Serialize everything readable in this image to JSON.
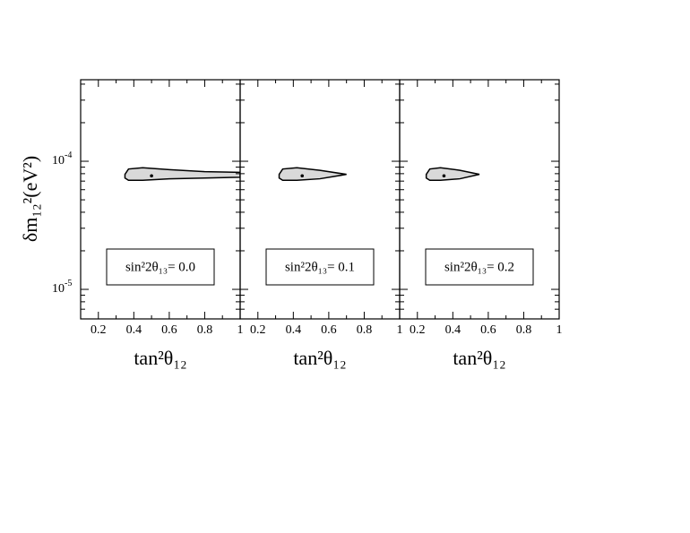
{
  "chart_data": [
    {
      "type": "contour",
      "ylabel": "δm₁₂²(eV²)",
      "xlabel": "tan²θ₁₂",
      "annotation": "sin²2θ₁₃= 0.0",
      "xlim": [
        0.1,
        1
      ],
      "xticks": [
        0.2,
        0.4,
        0.6,
        0.8,
        1
      ],
      "xminorticks": [
        0.3,
        0.5,
        0.7,
        0.9
      ],
      "ylim": [
        5.88e-06,
        0.000433
      ],
      "ylog": true,
      "yticks": [
        {
          "value": 1e-05,
          "label": "10",
          "exponent": "-5"
        },
        {
          "value": 0.0001,
          "label": "10",
          "exponent": "-4"
        }
      ],
      "yminorticks": [
        7e-06,
        8e-06,
        9e-06,
        2e-05,
        3e-05,
        4e-05,
        5e-05,
        6e-05,
        7e-05,
        8e-05,
        9e-05,
        0.0002,
        0.0003,
        0.0004
      ],
      "fill": "#d9d9d9",
      "contour": {
        "x": [
          0.35,
          0.37,
          0.45,
          0.6,
          0.8,
          1.0,
          1.0,
          0.8,
          0.6,
          0.45,
          0.37,
          0.35
        ],
        "y": [
          7.9e-05,
          8.7e-05,
          8.9e-05,
          8.6e-05,
          8.3e-05,
          8.2e-05,
          7.5e-05,
          7.4e-05,
          7.3e-05,
          7.1e-05,
          7.1e-05,
          7.4e-05
        ]
      },
      "best_fit": {
        "x": 0.5,
        "y": 7.7e-05
      }
    },
    {
      "type": "contour",
      "xlabel": "tan²θ₁₂",
      "annotation": "sin²2θ₁₃= 0.1",
      "xlim": [
        0.1,
        1
      ],
      "xticks": [
        0.2,
        0.4,
        0.6,
        0.8,
        1
      ],
      "xminorticks": [
        0.3,
        0.5,
        0.7,
        0.9
      ],
      "ylim": [
        5.88e-06,
        0.000433
      ],
      "ylog": true,
      "yminorticks": [
        7e-06,
        8e-06,
        9e-06,
        2e-05,
        3e-05,
        4e-05,
        5e-05,
        6e-05,
        7e-05,
        8e-05,
        9e-05,
        0.0002,
        0.0003,
        0.0004
      ],
      "ymajorticks": [
        1e-05,
        0.0001
      ],
      "fill": "#d9d9d9",
      "contour": {
        "x": [
          0.32,
          0.34,
          0.42,
          0.55,
          0.7,
          0.55,
          0.42,
          0.34,
          0.32
        ],
        "y": [
          7.9e-05,
          8.7e-05,
          8.9e-05,
          8.5e-05,
          7.9e-05,
          7.3e-05,
          7.1e-05,
          7.1e-05,
          7.4e-05
        ]
      },
      "best_fit": {
        "x": 0.45,
        "y": 7.7e-05
      }
    },
    {
      "type": "contour",
      "xlabel": "tan²θ₁₂",
      "annotation": "sin²2θ₁₃= 0.2",
      "xlim": [
        0.1,
        1
      ],
      "xticks": [
        0.2,
        0.4,
        0.6,
        0.8,
        1
      ],
      "xminorticks": [
        0.3,
        0.5,
        0.7,
        0.9
      ],
      "ylim": [
        5.88e-06,
        0.000433
      ],
      "ylog": true,
      "yminorticks": [
        7e-06,
        8e-06,
        9e-06,
        2e-05,
        3e-05,
        4e-05,
        5e-05,
        6e-05,
        7e-05,
        8e-05,
        9e-05,
        0.0002,
        0.0003,
        0.0004
      ],
      "ymajorticks": [
        1e-05,
        0.0001
      ],
      "fill": "#d9d9d9",
      "contour": {
        "x": [
          0.25,
          0.27,
          0.33,
          0.44,
          0.55,
          0.44,
          0.33,
          0.27,
          0.25
        ],
        "y": [
          7.9e-05,
          8.7e-05,
          8.9e-05,
          8.5e-05,
          7.9e-05,
          7.3e-05,
          7.1e-05,
          7.1e-05,
          7.4e-05
        ]
      },
      "best_fit": {
        "x": 0.35,
        "y": 7.7e-05
      }
    }
  ]
}
